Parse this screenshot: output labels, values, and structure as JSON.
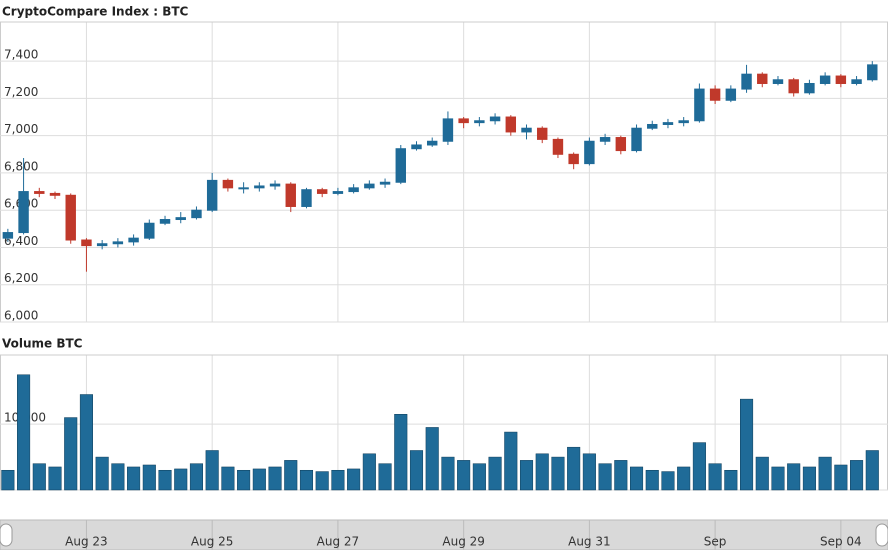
{
  "chart_data": [
    {
      "type": "candlestick",
      "title": "CryptoCompare Index : BTC",
      "open": [
        6450,
        6480,
        6700,
        6690,
        6680,
        6440,
        6410,
        6420,
        6430,
        6450,
        6530,
        6550,
        6560,
        6600,
        6760,
        6720,
        6720,
        6730,
        6740,
        6620,
        6710,
        6690,
        6700,
        6720,
        6740,
        6750,
        6930,
        6950,
        6970,
        7090,
        7070,
        7080,
        7100,
        7020,
        7040,
        6980,
        6900,
        6850,
        6970,
        6990,
        6920,
        7040,
        7060,
        7070,
        7080,
        7250,
        7190,
        7250,
        7330,
        7280,
        7300,
        7230,
        7280,
        7320,
        7280,
        7300
      ],
      "high": [
        6500,
        6880,
        6720,
        6700,
        6690,
        6450,
        6440,
        6450,
        6470,
        6550,
        6570,
        6590,
        6620,
        6800,
        6770,
        6750,
        6750,
        6760,
        6750,
        6720,
        6720,
        6720,
        6740,
        6760,
        6770,
        6950,
        6970,
        6990,
        7130,
        7100,
        7100,
        7120,
        7110,
        7060,
        7050,
        6990,
        6910,
        6990,
        7010,
        7000,
        7060,
        7080,
        7090,
        7100,
        7280,
        7270,
        7270,
        7380,
        7340,
        7320,
        7310,
        7300,
        7340,
        7330,
        7320,
        7400
      ],
      "low": [
        6430,
        6470,
        6670,
        6660,
        6420,
        6270,
        6390,
        6400,
        6410,
        6440,
        6520,
        6530,
        6550,
        6590,
        6700,
        6690,
        6700,
        6710,
        6590,
        6610,
        6670,
        6680,
        6690,
        6710,
        6720,
        6740,
        6920,
        6940,
        6950,
        7040,
        7050,
        7060,
        7000,
        6980,
        6960,
        6880,
        6820,
        6840,
        6950,
        6900,
        6910,
        7030,
        7040,
        7050,
        7070,
        7170,
        7180,
        7230,
        7260,
        7270,
        7210,
        7220,
        7270,
        7260,
        7270,
        7290
      ],
      "close": [
        6480,
        6700,
        6690,
        6680,
        6440,
        6410,
        6420,
        6430,
        6450,
        6530,
        6550,
        6560,
        6600,
        6760,
        6720,
        6720,
        6730,
        6740,
        6620,
        6710,
        6690,
        6700,
        6720,
        6740,
        6750,
        6930,
        6950,
        6970,
        7090,
        7070,
        7080,
        7100,
        7020,
        7040,
        6980,
        6900,
        6850,
        6970,
        6990,
        6920,
        7040,
        7060,
        7070,
        7080,
        7250,
        7190,
        7250,
        7330,
        7280,
        7300,
        7230,
        7280,
        7320,
        7280,
        7300,
        7380
      ],
      "up_color": "#1f6b98",
      "down_color": "#c0392b",
      "xlim": [
        0,
        56.5
      ],
      "xticks": [
        {
          "value": 5.5,
          "label": "Aug 23"
        },
        {
          "value": 13.5,
          "label": "Aug 25"
        },
        {
          "value": 21.5,
          "label": "Aug 27"
        },
        {
          "value": 29.5,
          "label": "Aug 29"
        },
        {
          "value": 37.5,
          "label": "Aug 31"
        },
        {
          "value": 45.5,
          "label": "Sep"
        },
        {
          "value": 53.5,
          "label": "Sep 04"
        }
      ],
      "ylim": [
        6000,
        7610
      ],
      "yticks": [
        {
          "value": 6000,
          "label": "6,000"
        },
        {
          "value": 6200,
          "label": "6,200"
        },
        {
          "value": 6400,
          "label": "6,400"
        },
        {
          "value": 6600,
          "label": "6,600"
        },
        {
          "value": 6800,
          "label": "6,800"
        },
        {
          "value": 7000,
          "label": "7,000"
        },
        {
          "value": 7200,
          "label": "7,200"
        },
        {
          "value": 7400,
          "label": "7,400"
        }
      ],
      "grid": true
    },
    {
      "type": "bar",
      "title": "Volume BTC",
      "color": "#1f6b98",
      "values": [
        3000,
        17500,
        4000,
        3500,
        11000,
        14500,
        5000,
        4000,
        3500,
        3800,
        3000,
        3200,
        4000,
        6000,
        3500,
        3000,
        3200,
        3500,
        4500,
        3000,
        2800,
        3000,
        3200,
        5500,
        4000,
        11500,
        6000,
        9500,
        5000,
        4500,
        4000,
        5000,
        8800,
        4500,
        5500,
        5000,
        6500,
        5500,
        4000,
        4500,
        3500,
        3000,
        2800,
        3500,
        7200,
        4000,
        3000,
        13800,
        5000,
        3500,
        4000,
        3500,
        5000,
        3800,
        4500,
        6000
      ],
      "ylim": [
        0,
        20500
      ],
      "yticks": [
        0,
        {
          "value": 10000,
          "label": "10,000"
        }
      ],
      "grid": true
    }
  ]
}
